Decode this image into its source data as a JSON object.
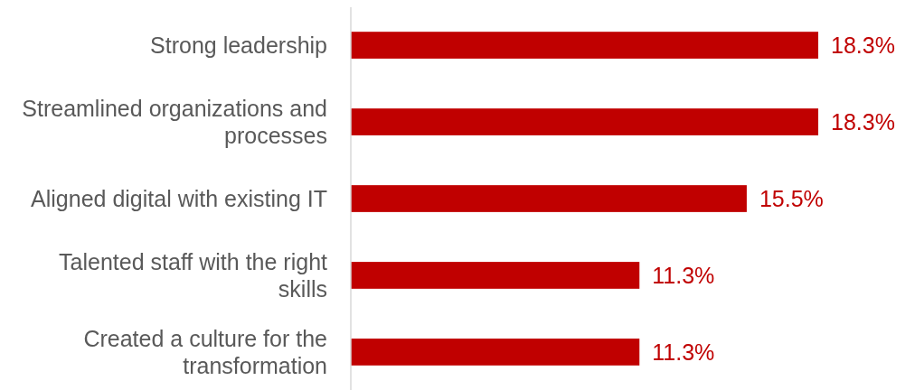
{
  "chart_data": {
    "type": "bar",
    "orientation": "horizontal",
    "categories": [
      "Strong leadership",
      "Streamlined organizations and processes",
      "Aligned digital with existing IT",
      "Talented staff with the right skills",
      "Created a culture for the transformation"
    ],
    "values": [
      18.3,
      18.3,
      15.5,
      11.3,
      11.3
    ],
    "color": "#c00000",
    "value_labels": [
      "18.3%",
      "18.3%",
      "15.5%",
      "11.3%",
      "11.3%"
    ]
  }
}
